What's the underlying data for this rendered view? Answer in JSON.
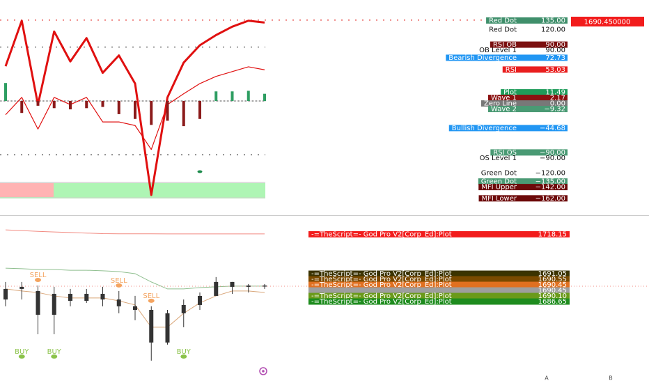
{
  "chart_data": [
    {
      "type": "line",
      "categories": [
        null,
        null,
        null,
        null,
        null,
        null,
        null,
        null,
        null,
        null,
        null,
        null,
        null,
        null,
        null,
        null,
        null
      ],
      "ylim": [
        -190,
        168
      ],
      "levels": [
        {
          "value": 135,
          "color": "#e53935"
        },
        {
          "value": 90,
          "color": "#333333"
        },
        {
          "value": 0,
          "color": "#666666"
        },
        {
          "value": -90,
          "color": "#333333"
        }
      ],
      "series": [
        {
          "type": "line",
          "color": "#e01010",
          "width": 3,
          "values": [
            58,
            134,
            -6,
            116,
            66,
            105,
            47,
            76,
            29,
            -157,
            6,
            64,
            93,
            110,
            124,
            134,
            131
          ]
        },
        {
          "type": "line",
          "color": "#e01010",
          "width": 1.2,
          "values": [
            -23,
            6,
            -47,
            6,
            -6,
            6,
            -35,
            -35,
            -41,
            -81,
            -6,
            12,
            29,
            41,
            49,
            57,
            52
          ]
        },
        {
          "type": "bar",
          "color": "#2e9e62",
          "negative_color": "#8b1a1a",
          "values": [
            30,
            -20,
            -8,
            -12,
            -14,
            -12,
            -10,
            -22,
            -30,
            -40,
            -33,
            -42,
            -30,
            16,
            16,
            17,
            12
          ]
        }
      ],
      "markers": [
        {
          "x": 12,
          "value": -118,
          "color": "#1b8a4a"
        }
      ],
      "price_label": {
        "value": 1690.45,
        "label": "1690.450000",
        "color": "#f21c1c"
      },
      "scale_labels": [
        {
          "name": "Red Dot",
          "value": 135,
          "label": "135.00",
          "color": "#3f8f6b"
        },
        {
          "name": "Red Dot",
          "value": 120,
          "label": "120.00"
        },
        {
          "name": "RSI OB",
          "value": 90,
          "label": "90.00",
          "color": "#7b1010"
        },
        {
          "name": "OB Level 1",
          "value": 90,
          "label": "90.00"
        },
        {
          "name": "Bearish Divergence",
          "value": 72.73,
          "label": "72.73",
          "color": "#2196f3"
        },
        {
          "name": "RSI",
          "value": 53.03,
          "label": "53.03",
          "color": "#e91e1e"
        },
        {
          "name": "Plot",
          "value": 11.49,
          "label": "11.49",
          "color": "#1f9c5a"
        },
        {
          "name": "Wave 1",
          "value": 2.17,
          "label": "2.17",
          "color": "#8b1111"
        },
        {
          "name": "Zero Line",
          "value": 0,
          "label": "0.00",
          "color": "#787878"
        },
        {
          "name": "Wave 2",
          "value": -9.32,
          "label": "−9.32",
          "color": "#4a9a74"
        },
        {
          "name": "Bullish Divergence",
          "value": -44.68,
          "label": "−44.68",
          "color": "#2196f3"
        },
        {
          "name": "RSI OS",
          "value": -90,
          "label": "−90.00",
          "color": "#4a9a74"
        },
        {
          "name": "OS Level 1",
          "value": -90,
          "label": "−90.00"
        },
        {
          "name": "Green Dot",
          "value": -120,
          "label": "−120.00"
        },
        {
          "name": "Green Dot",
          "value": -135,
          "label": "−135.00",
          "color": "#4a9a74"
        },
        {
          "name": "MFI Upper",
          "value": -142,
          "label": "−142.00",
          "color": "#6d0a0a"
        },
        {
          "name": "MFI Lower",
          "value": -162,
          "label": "−162.00",
          "color": "#6d0a0a"
        }
      ]
    },
    {
      "type": "ohlc",
      "categories": [
        null,
        null,
        null,
        null,
        null,
        null,
        null,
        null,
        null,
        null,
        null,
        null,
        null,
        null,
        null,
        null,
        null
      ],
      "ylim": [
        1640,
        1720
      ],
      "color": "#333333",
      "open": [
        1683.4,
        1689.0,
        1687.9,
        1675.3,
        1686.4,
        1682.7,
        1686.4,
        1683.4,
        1679.8,
        1677.9,
        1660.6,
        1676.1,
        1680.5,
        1685.3,
        1692.7,
        1690.1,
        1690.8
      ],
      "high": [
        1692.7,
        1692.7,
        1690.8,
        1690.1,
        1689.0,
        1689.0,
        1690.1,
        1687.9,
        1685.3,
        1679.8,
        1677.9,
        1683.4,
        1687.1,
        1695.3,
        1692.7,
        1691.6,
        1691.6
      ],
      "low": [
        1679.8,
        1683.4,
        1665.0,
        1665.0,
        1679.8,
        1681.6,
        1679.8,
        1676.1,
        1672.4,
        1651.0,
        1659.5,
        1668.7,
        1677.9,
        1685.3,
        1686.4,
        1687.1,
        1689.0
      ],
      "close": [
        1689.0,
        1690.1,
        1675.3,
        1686.4,
        1682.7,
        1686.4,
        1683.4,
        1679.8,
        1677.9,
        1660.6,
        1676.1,
        1680.5,
        1685.3,
        1692.7,
        1690.1,
        1690.8,
        1690.45
      ],
      "lines": [
        {
          "color": "#f28b82",
          "values": [
            1720.3,
            1719.9,
            1719.5,
            1719.2,
            1718.9,
            1718.6,
            1718.3,
            1718.2,
            1718.2,
            1718.2,
            1718.15,
            1718.15,
            1718.15,
            1718.15,
            1718.15,
            1718.15,
            1718.15
          ]
        },
        {
          "color": "#8fbf8f",
          "values": [
            1700.0,
            1699.7,
            1699.3,
            1699.3,
            1698.9,
            1698.9,
            1698.6,
            1698.2,
            1697.1,
            1692.7,
            1689.0,
            1689.0,
            1689.7,
            1690.1,
            1690.5,
            1690.5,
            1690.5
          ]
        },
        {
          "color": "#d9a679",
          "values": [
            1689.0,
            1687.9,
            1687.1,
            1685.3,
            1684.2,
            1684.2,
            1684.2,
            1682.7,
            1680.5,
            1668.7,
            1668.7,
            1676.1,
            1681.6,
            1685.3,
            1687.9,
            1687.9,
            1687.1
          ]
        }
      ],
      "signals": [
        {
          "text": "SELL",
          "index": 2,
          "color": "#f4a460"
        },
        {
          "text": "SELL",
          "index": 7,
          "color": "#f4a460"
        },
        {
          "text": "SELL",
          "index": 9,
          "color": "#f4a460"
        },
        {
          "text": "BUY",
          "index": 1,
          "color": "#8bc34a"
        },
        {
          "text": "BUY",
          "index": 3,
          "color": "#8bc34a"
        },
        {
          "text": "BUY",
          "index": 11,
          "color": "#8bc34a"
        }
      ],
      "scale_labels": [
        {
          "name": "-=TheScript=-  God Pro V2[Corp_Ed]:Plot",
          "value": 1718.15,
          "label": "1718.15",
          "color": "#f21c1c"
        },
        {
          "name": "-=TheScript=-  God Pro V2[Corp_Ed]:Plot",
          "value": 1691.05,
          "label": "1691.05",
          "color": "#3b3300"
        },
        {
          "name": "-=TheScript=-  God Pro V2[Corp_Ed]:Plot",
          "value": 1690.55,
          "label": "1690.55",
          "color": "#7a4a00"
        },
        {
          "name": "-=TheScript=-  God Pro V2[Corp_Ed]:Plot",
          "value": 1690.45,
          "label": "1690.45",
          "color": "#e07020"
        },
        {
          "value": 1690.45,
          "label": "1690.45",
          "color": "#9e9e9e"
        },
        {
          "name": "-=TheScript=-  God Pro V2[Corp_Ed]:Plot",
          "value": 1690.1,
          "label": "1690.10",
          "color": "#6a9a1a"
        },
        {
          "name": "-=TheScript=-  God Pro V2[Corp_Ed]:Plot",
          "value": 1686.65,
          "label": "1686.65",
          "color": "#1e8c1e"
        }
      ]
    }
  ],
  "footer": {
    "buttons": [
      "A",
      "B"
    ]
  }
}
